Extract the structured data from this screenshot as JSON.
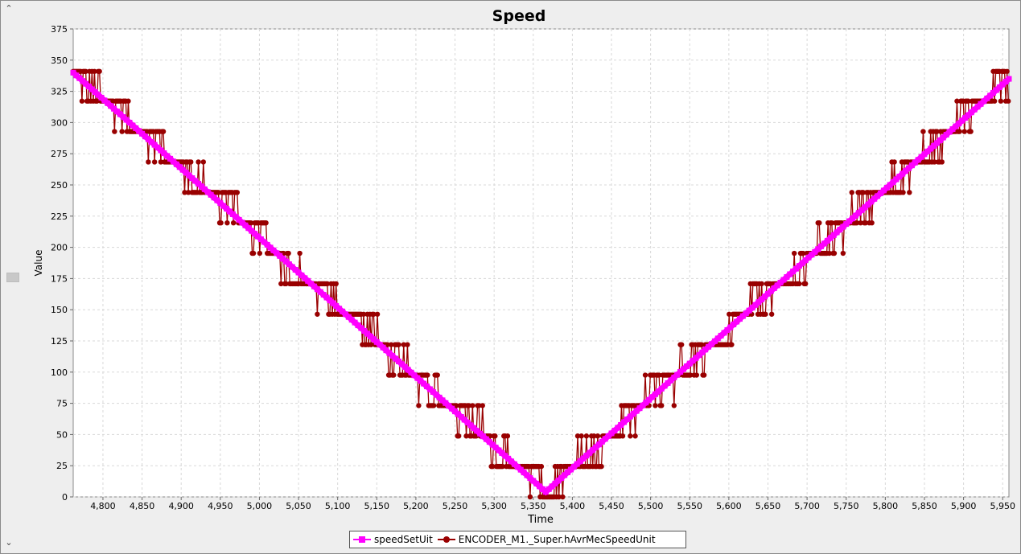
{
  "chart_data": {
    "type": "line",
    "title": "Speed",
    "xlabel": "Time",
    "ylabel": "Value",
    "xlim": [
      4762,
      5958
    ],
    "ylim": [
      0,
      375
    ],
    "x_ticks": [
      "4,800",
      "4,850",
      "4,900",
      "4,950",
      "5,000",
      "5,050",
      "5,100",
      "5,150",
      "5,200",
      "5,250",
      "5,300",
      "5,350",
      "5,400",
      "5,450",
      "5,500",
      "5,550",
      "5,600",
      "5,650",
      "5,700",
      "5,750",
      "5,800",
      "5,850",
      "5,900",
      "5,950"
    ],
    "x_tick_values": [
      4800,
      4850,
      4900,
      4950,
      5000,
      5050,
      5100,
      5150,
      5200,
      5250,
      5300,
      5350,
      5400,
      5450,
      5500,
      5550,
      5600,
      5650,
      5700,
      5750,
      5800,
      5850,
      5900,
      5950
    ],
    "y_ticks": [
      "0",
      "25",
      "50",
      "75",
      "100",
      "125",
      "150",
      "175",
      "200",
      "225",
      "250",
      "275",
      "300",
      "325",
      "350",
      "375"
    ],
    "y_tick_values": [
      0,
      25,
      50,
      75,
      100,
      125,
      150,
      175,
      200,
      225,
      250,
      275,
      300,
      325,
      350,
      375
    ],
    "grid": true,
    "legend_position": "bottom",
    "series": [
      {
        "name": "speedSetUit",
        "color": "#ff00ff",
        "marker": "square",
        "x": [
          4762,
          5366,
          5958
        ],
        "y": [
          340,
          4,
          335
        ]
      },
      {
        "name": "ENCODER_M1._Super.hAvrMecSpeedUnit",
        "color": "#990000",
        "marker": "circle",
        "quantization_step": 24.4,
        "x_start": 4762,
        "x_turn": 5366,
        "x_end": 5958,
        "y_start": 340,
        "y_turn": 4,
        "y_end": 335
      }
    ]
  },
  "ui": {
    "scroll_up_icon": "chevron-up-icon",
    "scroll_down_icon": "chevron-down-icon",
    "scroll_up_glyph": "⌃",
    "scroll_down_glyph": "⌄"
  }
}
